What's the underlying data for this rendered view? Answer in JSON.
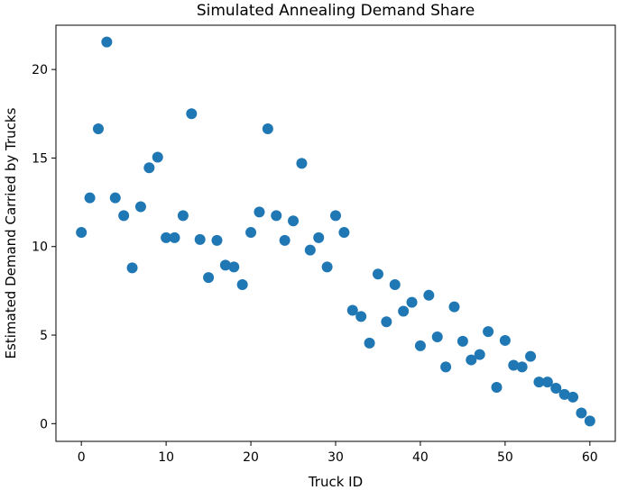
{
  "chart_data": {
    "type": "scatter",
    "title": "Simulated Annealing Demand Share",
    "xlabel": "Truck ID",
    "ylabel": "Estimated Demand Carried by Trucks",
    "xlim": [
      -3,
      63
    ],
    "ylim": [
      -1,
      22.5
    ],
    "xticks": [
      0,
      10,
      20,
      30,
      40,
      50,
      60
    ],
    "yticks": [
      0,
      5,
      10,
      15,
      20
    ],
    "grid": false,
    "marker_color": "#1f77b4",
    "x": [
      0,
      1,
      2,
      3,
      4,
      5,
      6,
      7,
      8,
      9,
      10,
      11,
      12,
      13,
      14,
      15,
      16,
      17,
      18,
      19,
      20,
      21,
      22,
      23,
      24,
      25,
      26,
      27,
      28,
      29,
      30,
      31,
      32,
      33,
      34,
      35,
      36,
      37,
      38,
      39,
      40,
      41,
      42,
      43,
      44,
      45,
      46,
      47,
      48,
      49,
      50,
      51,
      52,
      53,
      54,
      55,
      56,
      57,
      58,
      59,
      60
    ],
    "y": [
      10.8,
      12.75,
      16.65,
      21.55,
      12.75,
      11.75,
      8.8,
      12.25,
      14.45,
      15.05,
      10.5,
      10.5,
      11.75,
      17.5,
      10.4,
      8.25,
      10.35,
      8.95,
      8.85,
      7.85,
      10.8,
      11.95,
      16.65,
      11.75,
      10.35,
      11.45,
      14.7,
      9.8,
      10.5,
      8.85,
      11.75,
      10.8,
      6.4,
      6.05,
      4.55,
      8.45,
      5.75,
      7.85,
      6.35,
      6.85,
      4.4,
      7.25,
      4.9,
      3.2,
      6.6,
      4.65,
      3.6,
      3.9,
      5.2,
      2.05,
      4.7,
      3.3,
      3.2,
      3.8,
      2.35,
      2.35,
      2.0,
      1.65,
      1.5,
      0.6,
      0.15
    ]
  }
}
